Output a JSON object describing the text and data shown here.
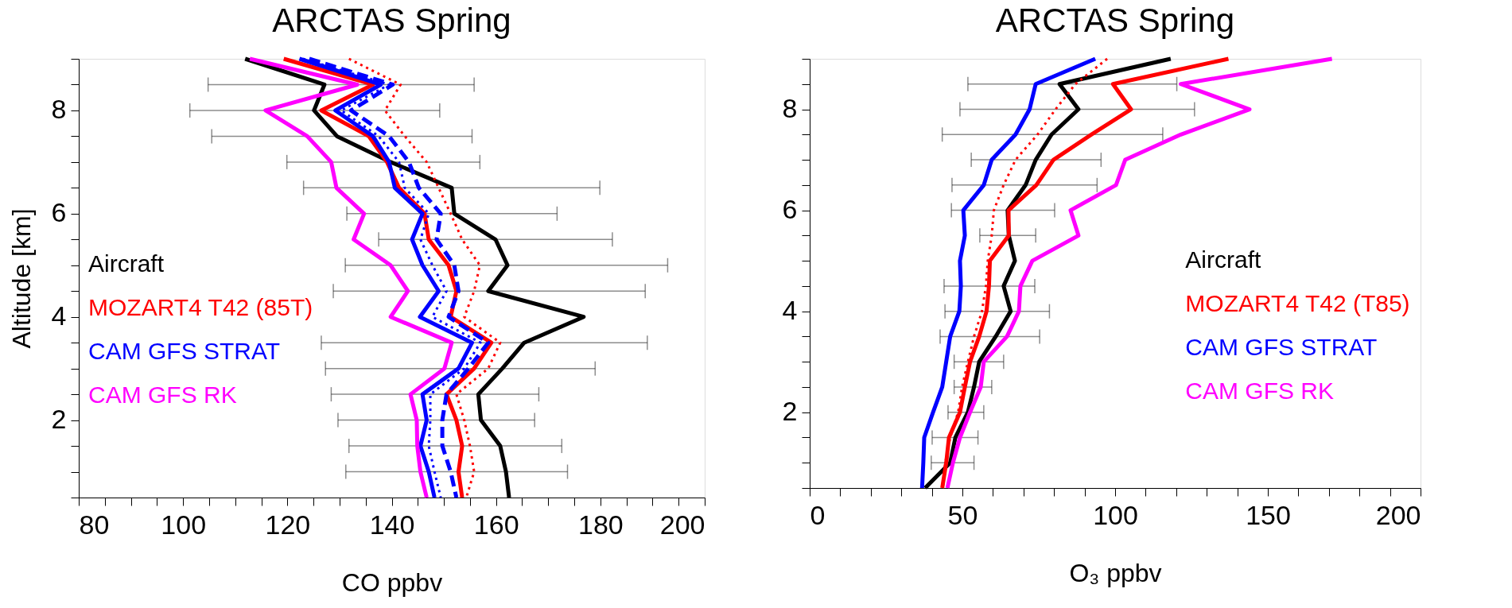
{
  "chart_data": [
    {
      "type": "line",
      "title": "ARCTAS Spring",
      "xlabel": "CO ppbv",
      "ylabel": "Altitude [km]",
      "legend": "left",
      "xlim": [
        80,
        200
      ],
      "ylim": [
        0.5,
        9
      ],
      "xticks": [
        80,
        {
          "value": 85,
          "label": null
        },
        {
          "value": 90,
          "label": null
        },
        {
          "value": 95,
          "label": null
        },
        100,
        {
          "value": 105,
          "label": null
        },
        {
          "value": 110,
          "label": null
        },
        {
          "value": 115,
          "label": null
        },
        120,
        {
          "value": 125,
          "label": null
        },
        {
          "value": 130,
          "label": null
        },
        {
          "value": 135,
          "label": null
        },
        140,
        {
          "value": 145,
          "label": null
        },
        {
          "value": 150,
          "label": null
        },
        {
          "value": 155,
          "label": null
        },
        160,
        {
          "value": 165,
          "label": null
        },
        {
          "value": 170,
          "label": null
        },
        {
          "value": 175,
          "label": null
        },
        180,
        {
          "value": 185,
          "label": null
        },
        {
          "value": 190,
          "label": null
        },
        {
          "value": 195,
          "label": null
        },
        200
      ],
      "yticks": [
        {
          "value": 0.5,
          "label": null
        },
        {
          "value": 1,
          "label": null
        },
        {
          "value": 1.5,
          "label": null
        },
        2,
        {
          "value": 2.5,
          "label": null
        },
        {
          "value": 3,
          "label": null
        },
        {
          "value": 3.5,
          "label": null
        },
        4,
        {
          "value": 4.5,
          "label": null
        },
        {
          "value": 5,
          "label": null
        },
        {
          "value": 5.5,
          "label": null
        },
        6,
        {
          "value": 6.5,
          "label": null
        },
        {
          "value": 7,
          "label": null
        },
        {
          "value": 7.5,
          "label": null
        },
        8,
        {
          "value": 8.5,
          "label": null
        },
        {
          "value": 9,
          "label": null
        }
      ],
      "series": [
        {
          "name": "Aircraft",
          "color": "#000000",
          "line_style": "solid",
          "x": [
            111.9,
            127.1,
            125.1,
            129.5,
            139.8,
            151.5,
            152.0,
            159.9,
            162.2,
            158.5,
            176.8,
            165.4,
            161.2,
            156.6,
            157.1,
            160.8,
            161.9,
            162.5
          ],
          "values": [
            9,
            8.5,
            8,
            7.5,
            7,
            6.5,
            6,
            5.5,
            5,
            4.5,
            4,
            3.5,
            3,
            2.5,
            2,
            1.5,
            1,
            0.5
          ],
          "xerrors": [
            null,
            [
              104.8,
              155.8
            ],
            [
              101.3,
              149.2
            ],
            [
              105.5,
              155.4
            ],
            [
              119.9,
              156.9
            ],
            [
              123.1,
              179.9
            ],
            [
              131.4,
              171.7
            ],
            [
              137.5,
              182.3
            ],
            [
              131.1,
              192.9
            ],
            [
              128.8,
              188.6
            ],
            null,
            [
              126.5,
              189.0
            ],
            [
              127.3,
              179.0
            ],
            [
              128.4,
              168.2
            ],
            [
              129.7,
              167.4
            ],
            [
              131.8,
              172.6
            ],
            [
              131.2,
              173.7
            ],
            null
          ]
        },
        {
          "name": "MOZART4 T42 (85T)",
          "color": "#ff0000",
          "line_style": "solid",
          "x": [
            119.3,
            136.4,
            126.5,
            135.6,
            139.1,
            141.4,
            146.3,
            147.1,
            150.9,
            152.4,
            151.3,
            159.1,
            155.8,
            150.5,
            152.4,
            153.5,
            152.8,
            153.5
          ],
          "values": [
            9,
            8.5,
            8,
            7.5,
            7,
            6.5,
            6,
            5.5,
            5,
            4.5,
            4,
            3.5,
            3,
            2.5,
            2,
            1.5,
            1,
            0.5
          ]
        },
        {
          "name": "CAM GFS STRAT",
          "color": "#0000ff",
          "line_style": "solid",
          "x": [
            122.3,
            137.9,
            129.2,
            136.4,
            139.5,
            140.6,
            145.9,
            143.9,
            145.9,
            149.0,
            145.4,
            155.4,
            152.8,
            145.9,
            146.7,
            145.5,
            147.1,
            148.2
          ],
          "values": [
            9,
            8.5,
            8,
            7.5,
            7,
            6.5,
            6,
            5.5,
            5,
            4.5,
            4,
            3.5,
            3,
            2.5,
            2,
            1.5,
            1,
            0.5
          ]
        },
        {
          "name": "CAM GFS RK",
          "color": "#ff00ff",
          "line_style": "solid",
          "x": [
            112.8,
            133.4,
            115.8,
            123.8,
            128.4,
            129.4,
            134.7,
            132.7,
            139.8,
            143.1,
            139.8,
            151.5,
            150.1,
            143.6,
            144.8,
            144.9,
            145.5,
            146.7
          ],
          "values": [
            9,
            8.5,
            8,
            7.5,
            7,
            6.5,
            6,
            5.5,
            5,
            4.5,
            4,
            3.5,
            3,
            2.5,
            2,
            1.5,
            1,
            0.5
          ]
        },
        {
          "color": "#0000ff",
          "line_style": "dashed",
          "x": [
            124.2,
            140.2,
            132.2,
            139.5,
            143.3,
            145.2,
            149.4,
            148.6,
            152.0,
            152.8,
            150.9,
            158.5,
            154.7,
            150.5,
            149.7,
            149.7,
            151.3,
            152.4
          ],
          "values": [
            9,
            8.5,
            8,
            7.5,
            7,
            6.5,
            6,
            5.5,
            5,
            4.5,
            4,
            3.5,
            3,
            2.5,
            2,
            1.5,
            1,
            0.5
          ]
        },
        {
          "color": "#0000ff",
          "line_style": "dotted",
          "x": [
            123.0,
            139.5,
            130.3,
            137.5,
            141.4,
            142.5,
            147.1,
            145.5,
            147.8,
            150.5,
            147.8,
            157.0,
            153.9,
            147.4,
            147.4,
            147.1,
            148.2,
            149.4
          ],
          "values": [
            9,
            8.5,
            8,
            7.5,
            7,
            6.5,
            6,
            5.5,
            5,
            4.5,
            4,
            3.5,
            3,
            2.5,
            2,
            1.5,
            1,
            0.5
          ]
        },
        {
          "color": "#ff0000",
          "line_style": "dotted",
          "x": [
            131.8,
            141.7,
            138.7,
            142.5,
            146.7,
            149.0,
            151.3,
            153.5,
            156.9,
            155.8,
            153.9,
            160.8,
            158.5,
            152.4,
            153.9,
            155.0,
            155.8,
            154.3
          ],
          "values": [
            9,
            8.5,
            8,
            7.5,
            7,
            6.5,
            6,
            5.5,
            5,
            4.5,
            4,
            3.5,
            3,
            2.5,
            2,
            1.5,
            1,
            0.5
          ]
        }
      ]
    },
    {
      "type": "line",
      "title": "ARCTAS Spring",
      "xlabel": "O₃ ppbv",
      "legend": "right",
      "xlim": [
        0,
        200
      ],
      "ylim": [
        0.5,
        9
      ],
      "xticks": [
        0,
        {
          "value": 10,
          "label": null
        },
        {
          "value": 20,
          "label": null
        },
        {
          "value": 30,
          "label": null
        },
        {
          "value": 40,
          "label": null
        },
        50,
        {
          "value": 60,
          "label": null
        },
        {
          "value": 70,
          "label": null
        },
        {
          "value": 80,
          "label": null
        },
        {
          "value": 90,
          "label": null
        },
        100,
        {
          "value": 110,
          "label": null
        },
        {
          "value": 120,
          "label": null
        },
        {
          "value": 130,
          "label": null
        },
        {
          "value": 140,
          "label": null
        },
        150,
        {
          "value": 160,
          "label": null
        },
        {
          "value": 170,
          "label": null
        },
        {
          "value": 180,
          "label": null
        },
        {
          "value": 190,
          "label": null
        },
        200
      ],
      "yticks": [
        {
          "value": 0.5,
          "label": null
        },
        {
          "value": 1,
          "label": null
        },
        {
          "value": 1.5,
          "label": null
        },
        2,
        {
          "value": 2.5,
          "label": null
        },
        {
          "value": 3,
          "label": null
        },
        {
          "value": 3.5,
          "label": null
        },
        4,
        {
          "value": 4.5,
          "label": null
        },
        {
          "value": 5,
          "label": null
        },
        {
          "value": 5.5,
          "label": null
        },
        6,
        {
          "value": 6.5,
          "label": null
        },
        {
          "value": 7,
          "label": null
        },
        {
          "value": 7.5,
          "label": null
        },
        8,
        {
          "value": 8.5,
          "label": null
        },
        {
          "value": 9,
          "label": null
        }
      ],
      "series": [
        {
          "name": "Aircraft",
          "color": "#000000",
          "line_style": "solid",
          "x": [
            118.2,
            81.8,
            88.0,
            79.2,
            74.0,
            70.7,
            64.8,
            65.2,
            67.2,
            63.5,
            65.8,
            60.9,
            55.5,
            53.8,
            51.8,
            47.7,
            46.0,
            37.8
          ],
          "values": [
            9,
            8.5,
            8,
            7.5,
            7,
            6.5,
            6,
            5.5,
            5,
            4.5,
            4,
            3.5,
            3,
            2.5,
            2,
            1.5,
            1,
            0.5
          ],
          "xerrors": [
            null,
            [
              51.8,
              120.2
            ],
            [
              49.2,
              126.0
            ],
            [
              43.4,
              115.6
            ],
            [
              52.9,
              95.4
            ],
            [
              46.6,
              94.1
            ],
            [
              46.4,
              80.2
            ],
            [
              55.7,
              74.0
            ],
            null,
            [
              44.0,
              73.7
            ],
            [
              44.3,
              78.5
            ],
            [
              42.7,
              75.3
            ],
            [
              47.3,
              63.5
            ],
            [
              47.3,
              59.6
            ],
            [
              45.3,
              57.0
            ],
            [
              40.1,
              55.1
            ],
            [
              39.8,
              53.8
            ],
            null
          ]
        },
        {
          "name": "MOZART4 T42 (T85)",
          "color": "#ff0000",
          "line_style": "solid",
          "x": [
            137.1,
            99.3,
            105.2,
            92.2,
            79.8,
            74.2,
            65.1,
            65.2,
            59.0,
            58.7,
            57.9,
            55.5,
            52.5,
            50.8,
            49.2,
            45.6,
            44.7,
            43.4
          ],
          "values": [
            9,
            8.5,
            8,
            7.5,
            7,
            6.5,
            6,
            5.5,
            5,
            4.5,
            4,
            3.5,
            3,
            2.5,
            2,
            1.5,
            1,
            0.5
          ]
        },
        {
          "name": "CAM GFS STRAT",
          "color": "#0000ff",
          "line_style": "solid",
          "x": [
            93.5,
            74.0,
            72.0,
            67.4,
            59.6,
            57.0,
            50.3,
            50.8,
            49.2,
            49.5,
            49.0,
            46.0,
            44.7,
            43.4,
            40.4,
            37.5,
            37.2,
            36.8
          ],
          "values": [
            9,
            8.5,
            8,
            7.5,
            7,
            6.5,
            6,
            5.5,
            5,
            4.5,
            4,
            3.5,
            3,
            2.5,
            2,
            1.5,
            1,
            0.5
          ]
        },
        {
          "name": "CAM GFS RK",
          "color": "#ff00ff",
          "line_style": "solid",
          "x": [
            171.0,
            121.5,
            144.0,
            121.5,
            103.3,
            100.3,
            85.4,
            88.0,
            72.9,
            69.0,
            68.5,
            64.6,
            57.0,
            56.0,
            52.5,
            49.2,
            46.9,
            45.1
          ],
          "values": [
            9,
            8.5,
            8,
            7.5,
            7,
            6.5,
            6,
            5.5,
            5,
            4.5,
            4,
            3.5,
            3,
            2.5,
            2,
            1.5,
            1,
            0.5
          ]
        },
        {
          "color": "#ff0000",
          "line_style": "dotted",
          "x": [
            97.4,
            87.0,
            80.5,
            74.6,
            67.4,
            63.5,
            60.3,
            59.6,
            58.3,
            57.7,
            56.4,
            53.8,
            51.8,
            49.9,
            48.6,
            46.0,
            44.4,
            43.6
          ],
          "values": [
            9,
            8.5,
            8,
            7.5,
            7,
            6.5,
            6,
            5.5,
            5,
            4.5,
            4,
            3.5,
            3,
            2.5,
            2,
            1.5,
            1,
            0.5
          ]
        }
      ]
    }
  ]
}
